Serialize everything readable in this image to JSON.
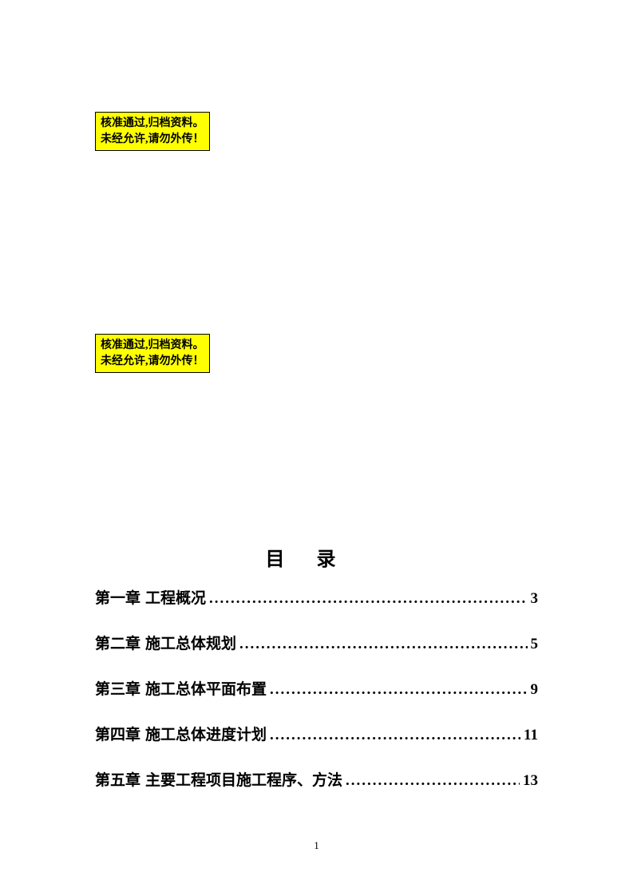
{
  "stamps": [
    {
      "line1": "核准通过,归档资料。",
      "line2": "未经允许,请勿外传！"
    },
    {
      "line1": "核准通过,归档资料。",
      "line2": "未经允许,请勿外传！"
    }
  ],
  "toc": {
    "title": "目录",
    "entries": [
      {
        "chapter": "第一章",
        "name": "工程概况",
        "page": "3"
      },
      {
        "chapter": "第二章",
        "name": "施工总体规划",
        "page": "5"
      },
      {
        "chapter": "第三章",
        "name": "施工总体平面布置",
        "page": "9"
      },
      {
        "chapter": "第四章",
        "name": "施工总体进度计划",
        "page": "11"
      },
      {
        "chapter": "第五章",
        "name": "主要工程项目施工程序、方法",
        "page": "13"
      }
    ]
  },
  "page_number": "1",
  "colors": {
    "stamp_bg": "#ffff00",
    "stamp_border": "#000000",
    "page_bg": "#ffffff",
    "text": "#000000"
  }
}
